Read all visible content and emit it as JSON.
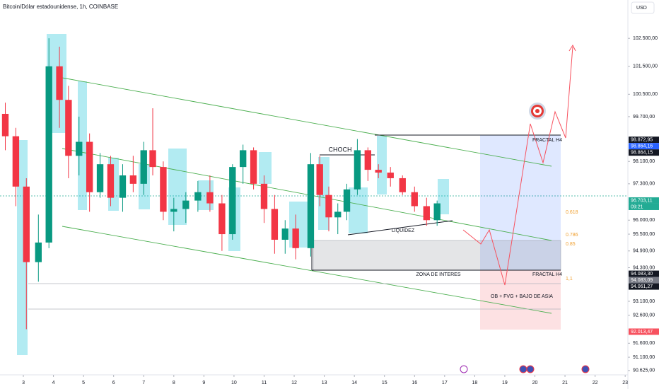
{
  "chart_data": {
    "type": "candlestick",
    "title": "Bitcoin/Dólar estadounidense, 1h, COINBASE",
    "currency_button": "USD",
    "x": [
      2.4,
      2.75,
      3.1,
      3.5,
      3.85,
      4.2,
      4.5,
      4.85,
      5.2,
      5.55,
      5.9,
      6.3,
      6.65,
      7.0,
      7.3,
      7.65,
      8.0,
      8.4,
      8.8,
      9.2,
      9.6,
      9.95,
      10.3,
      10.65,
      11.0,
      11.35,
      11.7,
      12.05,
      12.55,
      12.85,
      13.15,
      13.45,
      13.75,
      14.1,
      14.45,
      14.8,
      15.2,
      15.6,
      16.0,
      16.4,
      16.75
    ],
    "open": [
      99800,
      99000,
      97200,
      94500,
      95200,
      101500,
      100300,
      98300,
      98800,
      97000,
      98000,
      96800,
      97600,
      97300,
      98500,
      97900,
      96300,
      96400,
      96700,
      97000,
      96600,
      95500,
      97900,
      98500,
      97300,
      96400,
      95300,
      95700,
      95000,
      98000,
      96900,
      96100,
      96300,
      97100,
      98500,
      97800,
      97700,
      97500,
      97000,
      96500,
      96000
    ],
    "high": [
      100200,
      99300,
      97500,
      96200,
      102500,
      102200,
      100800,
      99700,
      99100,
      98400,
      98300,
      98000,
      98300,
      98800,
      100000,
      98100,
      96800,
      97000,
      97400,
      97600,
      96900,
      98000,
      98700,
      98600,
      97600,
      96900,
      96000,
      96200,
      98400,
      98300,
      97200,
      96600,
      97300,
      98900,
      98600,
      98000,
      97900,
      97600,
      97200,
      96800,
      96700
    ],
    "low": [
      98500,
      96500,
      92100,
      93800,
      95000,
      99300,
      97500,
      97600,
      96300,
      96800,
      96500,
      96300,
      97000,
      96900,
      97600,
      96000,
      95600,
      95900,
      96300,
      96300,
      94900,
      95300,
      97300,
      97100,
      95900,
      94800,
      94800,
      94600,
      94700,
      96500,
      95600,
      95500,
      96000,
      96900,
      97400,
      97500,
      97200,
      96900,
      96300,
      95800,
      95800
    ],
    "close": [
      99000,
      97200,
      94500,
      95200,
      101500,
      100300,
      98300,
      98800,
      97000,
      98000,
      96800,
      97600,
      97300,
      98500,
      97900,
      96300,
      96400,
      96700,
      97000,
      96600,
      95500,
      97900,
      98500,
      97300,
      96400,
      95300,
      95700,
      95000,
      98000,
      96900,
      96100,
      96300,
      97100,
      98500,
      97800,
      97700,
      97500,
      97000,
      96500,
      96000,
      96600
    ],
    "up_color": "#089981",
    "down_color": "#f23645",
    "xlim": [
      2.224,
      23.09
    ],
    "xticks": [
      3,
      4,
      5,
      6,
      7,
      8,
      9,
      10,
      11,
      12,
      13,
      14,
      15,
      16,
      17,
      18,
      19,
      20,
      21,
      22,
      23
    ],
    "ylim": [
      90470,
      103870
    ],
    "yticks": [
      {
        "value": 102500,
        "label": "102.500,00"
      },
      {
        "value": 101500,
        "label": "101.500,00"
      },
      {
        "value": 100500,
        "label": "100.500,00"
      },
      {
        "value": 99700,
        "label": "99.700,00"
      },
      {
        "value": 98100,
        "label": "98.100,00"
      },
      {
        "value": 97300,
        "label": "97.300,00"
      },
      {
        "value": 96000,
        "label": "96.000,00"
      },
      {
        "value": 95500,
        "label": "95.500,00"
      },
      {
        "value": 94900,
        "label": "94.900,00"
      },
      {
        "value": 94300,
        "label": "94.300,00"
      },
      {
        "value": 93100,
        "label": "93.100,00"
      },
      {
        "value": 92600,
        "label": "92.600,00"
      },
      {
        "value": 91600,
        "label": "91.600,00"
      },
      {
        "value": 91100,
        "label": "91.100,00"
      },
      {
        "value": 90625,
        "label": "90.625,00"
      }
    ],
    "price_badges": [
      {
        "value": 98872.95,
        "label": "98.872,95",
        "color": "#131722"
      },
      {
        "value": 98864.16,
        "label": "98.864,16",
        "color": "#2962ff"
      },
      {
        "value": 98864.15,
        "label": "98.864,15",
        "color": "#131722"
      },
      {
        "value": 96703.11,
        "label": "96.703,11",
        "color": "#22ab94"
      },
      {
        "value": 94083.3,
        "label": "94.083,30",
        "color": "#131722"
      },
      {
        "value": 94083.09,
        "label": "94.083,09",
        "color": "#787b86"
      },
      {
        "value": 94061.27,
        "label": "94.061,27",
        "color": "#131722"
      },
      {
        "value": 92013.47,
        "label": "92.013,47",
        "color": "#f7525f"
      }
    ],
    "countdown": "09:21",
    "annotations": {
      "choch": "CHOCH",
      "liquidez": "LIQUIDEZ",
      "zona": "ZONA DE INTERES",
      "fractal_top": "FRACTAL H4",
      "fractal_bottom": "FRACTAL H4",
      "ob": "OB + FVG + BAJO DE ASIA",
      "fib_618": "0.618",
      "fib_786": "0.786",
      "fib_85": "0.85",
      "fib_11": "1,1"
    }
  }
}
